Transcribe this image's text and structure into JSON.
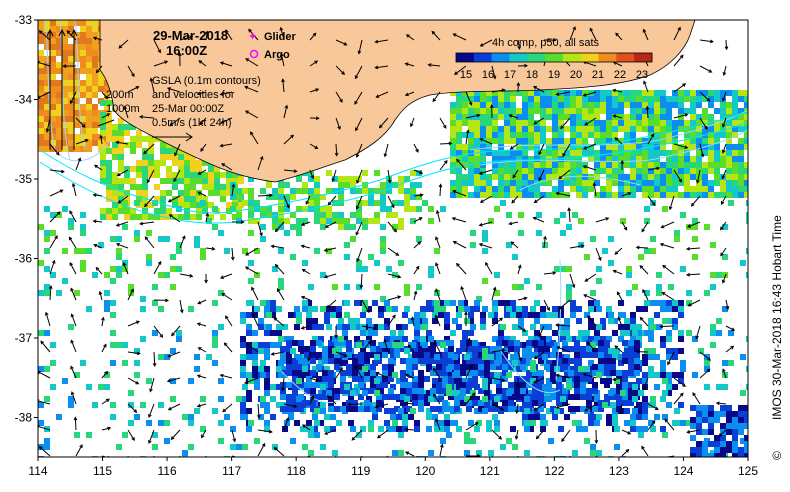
{
  "header": {
    "date": "29-Mar-2018",
    "time": "16:00Z"
  },
  "legend": {
    "glider_label": "Glider",
    "argo_label": "Argo",
    "glider_color": "#ff00ff",
    "argo_color": "#ff00ff"
  },
  "gsla_info": {
    "line1": "GSLA (0.1m contours)",
    "line2": "and velocities for",
    "line3": "25-Mar 00:00Z",
    "line4": "0.5m/s (1kt 24h)"
  },
  "depth_labels": {
    "d200": "200m",
    "d1000": "1000m"
  },
  "colorbar": {
    "title": "4h comp, p50, all sats",
    "ticks": [
      "15",
      "16",
      "17",
      "18",
      "19",
      "20",
      "21",
      "22",
      "23"
    ],
    "colors": [
      "#08088a",
      "#0a3fd6",
      "#0a8ff0",
      "#14c8c8",
      "#2ad67a",
      "#5adc2a",
      "#b4e614",
      "#f0d21e",
      "#f08c1e",
      "#e0501e",
      "#b42814"
    ]
  },
  "axes": {
    "x_ticks": [
      "114",
      "115",
      "116",
      "117",
      "118",
      "119",
      "120",
      "121",
      "122",
      "123",
      "124",
      "125"
    ],
    "y_ticks": [
      "-33",
      "-34",
      "-35",
      "-36",
      "-37",
      "-38"
    ]
  },
  "credit": "IMOS 30-Mar-2018 16:43 Hobart Time",
  "copyright_symbol": "©",
  "colors": {
    "land": "#f9c89a",
    "contour": "#9ad6ff",
    "isobath": "#00e6ff"
  }
}
